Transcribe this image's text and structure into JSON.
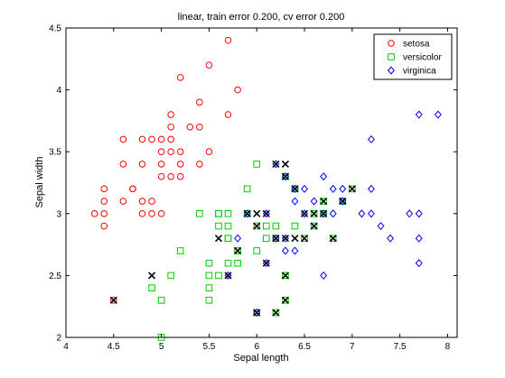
{
  "chart_data": {
    "type": "scatter",
    "title": "linear, train error 0.200, cv error 0.200",
    "xlabel": "Sepal length",
    "ylabel": "Sepal width",
    "xlim": [
      4,
      8.1
    ],
    "ylim": [
      2,
      4.5
    ],
    "xticks": [
      "4",
      "4.5",
      "5",
      "5.5",
      "6",
      "6.5",
      "7",
      "7.5",
      "8"
    ],
    "yticks": [
      "2",
      "2.5",
      "3",
      "3.5",
      "4",
      "4.5"
    ],
    "grid": false,
    "legend_position": "top-right",
    "series": [
      {
        "name": "setosa",
        "marker": "circle",
        "color": "#ff0000",
        "points": [
          [
            5.1,
            3.5
          ],
          [
            4.9,
            3.0
          ],
          [
            4.7,
            3.2
          ],
          [
            4.6,
            3.1
          ],
          [
            5.0,
            3.6
          ],
          [
            5.4,
            3.9
          ],
          [
            4.6,
            3.4
          ],
          [
            5.0,
            3.4
          ],
          [
            4.4,
            2.9
          ],
          [
            4.9,
            3.1
          ],
          [
            5.4,
            3.7
          ],
          [
            4.8,
            3.4
          ],
          [
            4.8,
            3.0
          ],
          [
            4.3,
            3.0
          ],
          [
            5.8,
            4.0
          ],
          [
            5.7,
            4.4
          ],
          [
            5.1,
            3.8
          ],
          [
            5.7,
            3.8
          ],
          [
            5.4,
            3.4
          ],
          [
            5.1,
            3.7
          ],
          [
            4.6,
            3.6
          ],
          [
            5.1,
            3.3
          ],
          [
            4.8,
            3.1
          ],
          [
            5.0,
            3.0
          ],
          [
            5.2,
            3.5
          ],
          [
            5.2,
            3.4
          ],
          [
            4.7,
            3.2
          ],
          [
            5.2,
            4.1
          ],
          [
            5.5,
            4.2
          ],
          [
            5.5,
            3.5
          ],
          [
            4.4,
            3.0
          ],
          [
            5.0,
            3.5
          ],
          [
            4.5,
            2.3
          ],
          [
            4.4,
            3.2
          ],
          [
            5.3,
            3.7
          ],
          [
            4.9,
            3.6
          ],
          [
            4.4,
            3.1
          ],
          [
            5.1,
            3.6
          ],
          [
            5.0,
            3.3
          ],
          [
            4.8,
            3.6
          ],
          [
            5.2,
            3.3
          ]
        ]
      },
      {
        "name": "versicolor",
        "marker": "square",
        "color": "#00cc00",
        "points": [
          [
            7.0,
            3.2
          ],
          [
            6.4,
            3.2
          ],
          [
            6.9,
            3.1
          ],
          [
            5.5,
            2.3
          ],
          [
            6.5,
            2.8
          ],
          [
            5.7,
            2.8
          ],
          [
            6.3,
            3.3
          ],
          [
            4.9,
            2.4
          ],
          [
            6.6,
            2.9
          ],
          [
            5.2,
            2.7
          ],
          [
            5.0,
            2.0
          ],
          [
            5.9,
            3.0
          ],
          [
            6.0,
            2.2
          ],
          [
            6.1,
            2.9
          ],
          [
            5.6,
            2.9
          ],
          [
            6.7,
            3.1
          ],
          [
            5.6,
            3.0
          ],
          [
            5.8,
            2.7
          ],
          [
            6.2,
            2.2
          ],
          [
            5.6,
            2.5
          ],
          [
            5.9,
            3.2
          ],
          [
            6.1,
            2.8
          ],
          [
            6.3,
            2.5
          ],
          [
            6.4,
            2.9
          ],
          [
            6.6,
            3.0
          ],
          [
            6.8,
            2.8
          ],
          [
            6.7,
            3.0
          ],
          [
            6.0,
            2.9
          ],
          [
            5.7,
            2.6
          ],
          [
            5.5,
            2.4
          ],
          [
            5.5,
            2.6
          ],
          [
            5.8,
            2.7
          ],
          [
            6.0,
            2.7
          ],
          [
            5.4,
            3.0
          ],
          [
            6.0,
            3.4
          ],
          [
            6.3,
            2.3
          ],
          [
            5.6,
            3.0
          ],
          [
            5.5,
            2.5
          ],
          [
            5.0,
            2.3
          ],
          [
            5.7,
            3.0
          ],
          [
            5.7,
            2.9
          ],
          [
            6.2,
            2.9
          ],
          [
            5.1,
            2.5
          ],
          [
            5.7,
            2.8
          ],
          [
            5.8,
            2.6
          ],
          [
            6.9,
            3.1
          ],
          [
            6.2,
            2.8
          ]
        ]
      },
      {
        "name": "virginica",
        "marker": "diamond",
        "color": "#0000ff",
        "points": [
          [
            6.3,
            3.3
          ],
          [
            7.1,
            3.0
          ],
          [
            6.5,
            3.0
          ],
          [
            7.6,
            3.0
          ],
          [
            7.3,
            2.9
          ],
          [
            7.2,
            3.6
          ],
          [
            6.4,
            2.7
          ],
          [
            6.8,
            3.0
          ],
          [
            5.7,
            2.5
          ],
          [
            5.8,
            2.8
          ],
          [
            6.4,
            3.2
          ],
          [
            7.7,
            3.8
          ],
          [
            7.7,
            2.6
          ],
          [
            6.0,
            2.2
          ],
          [
            6.9,
            3.2
          ],
          [
            7.7,
            2.8
          ],
          [
            6.3,
            2.7
          ],
          [
            6.7,
            3.3
          ],
          [
            7.2,
            3.2
          ],
          [
            6.2,
            2.8
          ],
          [
            6.1,
            3.0
          ],
          [
            7.2,
            3.0
          ],
          [
            7.4,
            2.8
          ],
          [
            7.9,
            3.8
          ],
          [
            6.3,
            2.8
          ],
          [
            6.1,
            2.6
          ],
          [
            7.7,
            3.0
          ],
          [
            6.4,
            3.1
          ],
          [
            6.9,
            3.1
          ],
          [
            6.7,
            2.5
          ],
          [
            6.8,
            3.2
          ],
          [
            6.7,
            3.0
          ],
          [
            6.5,
            3.2
          ],
          [
            6.2,
            3.4
          ],
          [
            5.9,
            3.0
          ],
          [
            6.6,
            3.1
          ]
        ]
      }
    ],
    "misclassified": [
      [
        4.5,
        2.3
      ],
      [
        4.9,
        2.5
      ],
      [
        5.7,
        2.5
      ],
      [
        5.6,
        2.8
      ],
      [
        5.8,
        2.7
      ],
      [
        5.9,
        3.0
      ],
      [
        6.0,
        2.2
      ],
      [
        6.0,
        2.9
      ],
      [
        6.0,
        3.0
      ],
      [
        6.1,
        2.6
      ],
      [
        6.1,
        3.0
      ],
      [
        6.2,
        2.2
      ],
      [
        6.2,
        2.8
      ],
      [
        6.2,
        3.4
      ],
      [
        6.3,
        2.3
      ],
      [
        6.3,
        2.5
      ],
      [
        6.3,
        2.8
      ],
      [
        6.3,
        3.3
      ],
      [
        6.3,
        3.4
      ],
      [
        6.4,
        3.2
      ],
      [
        6.5,
        2.8
      ],
      [
        6.6,
        3.0
      ],
      [
        6.7,
        3.1
      ],
      [
        6.8,
        2.8
      ],
      [
        6.9,
        3.1
      ],
      [
        7.0,
        3.2
      ],
      [
        6.4,
        2.8
      ],
      [
        6.6,
        2.9
      ],
      [
        6.7,
        3.0
      ],
      [
        6.5,
        3.0
      ]
    ]
  }
}
